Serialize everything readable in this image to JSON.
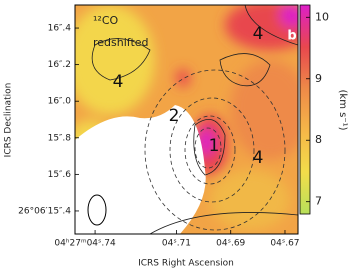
{
  "chart_data": {
    "type": "image",
    "title": "¹²CO",
    "subtitle": "redshifted",
    "xlabel": "ICRS Right Ascension",
    "ylabel": "ICRS Declination",
    "colorbar_label": "(km s⁻¹)",
    "annotations": [
      "4",
      "4",
      "2",
      "1",
      "4",
      "b"
    ],
    "xlim": [
      4.7474,
      4.6652
    ],
    "xticks": [
      {
        "value": 4.74,
        "label": "04ʰ27ᵐ04ˢ.74"
      },
      {
        "value": 4.71,
        "label": "04ˢ.71"
      },
      {
        "value": 4.69,
        "label": "04ˢ.69"
      },
      {
        "value": 4.67,
        "label": "04ˢ.67"
      }
    ],
    "ylim": [
      15.274,
      16.526
    ],
    "yticks": [
      {
        "value": 16.4,
        "label": "16″.4"
      },
      {
        "value": 16.2,
        "label": "16″.2"
      },
      {
        "value": 16.0,
        "label": "16″.0"
      },
      {
        "value": 15.8,
        "label": "15″.8"
      },
      {
        "value": 15.6,
        "label": "15″.6"
      },
      {
        "value": 15.4,
        "label": "26°06′15″.4"
      }
    ],
    "clim": [
      6.8,
      10.2
    ],
    "cticks": [
      7,
      8,
      9,
      10
    ],
    "colormap": [
      "#b8e05a",
      "#f3dd4a",
      "#f5b648",
      "#ee8a48",
      "#e8474e",
      "#dd1fc8"
    ]
  }
}
